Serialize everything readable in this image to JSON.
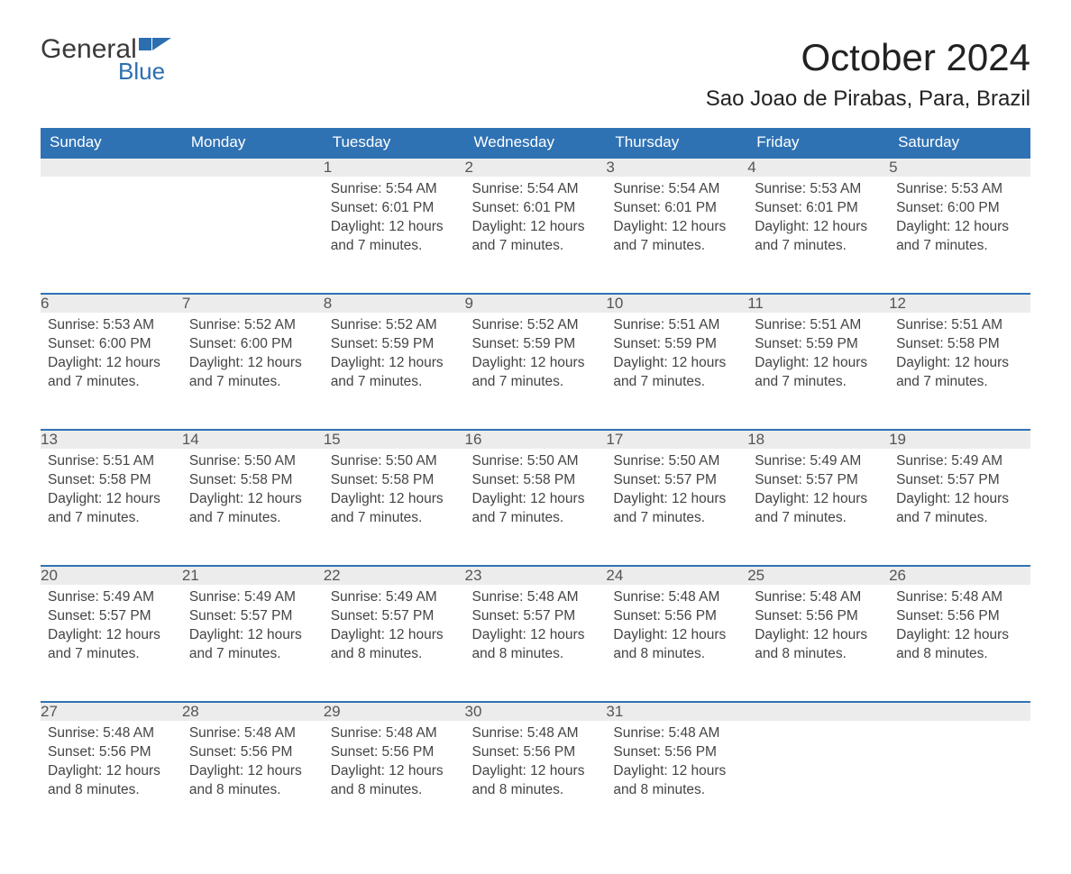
{
  "logo": {
    "text_general": "General",
    "text_blue": "Blue"
  },
  "title": "October 2024",
  "location": "Sao Joao de Pirabas, Para, Brazil",
  "colors": {
    "header_bg": "#2f72b4",
    "header_text": "#ffffff",
    "daynum_bg": "#ececec",
    "daynum_border": "#2f72b4",
    "body_text": "#444444",
    "logo_blue": "#2b6fb0"
  },
  "weekdays": [
    "Sunday",
    "Monday",
    "Tuesday",
    "Wednesday",
    "Thursday",
    "Friday",
    "Saturday"
  ],
  "weeks": [
    [
      null,
      null,
      {
        "n": "1",
        "sunrise": "5:54 AM",
        "sunset": "6:01 PM",
        "daylight": "12 hours and 7 minutes."
      },
      {
        "n": "2",
        "sunrise": "5:54 AM",
        "sunset": "6:01 PM",
        "daylight": "12 hours and 7 minutes."
      },
      {
        "n": "3",
        "sunrise": "5:54 AM",
        "sunset": "6:01 PM",
        "daylight": "12 hours and 7 minutes."
      },
      {
        "n": "4",
        "sunrise": "5:53 AM",
        "sunset": "6:01 PM",
        "daylight": "12 hours and 7 minutes."
      },
      {
        "n": "5",
        "sunrise": "5:53 AM",
        "sunset": "6:00 PM",
        "daylight": "12 hours and 7 minutes."
      }
    ],
    [
      {
        "n": "6",
        "sunrise": "5:53 AM",
        "sunset": "6:00 PM",
        "daylight": "12 hours and 7 minutes."
      },
      {
        "n": "7",
        "sunrise": "5:52 AM",
        "sunset": "6:00 PM",
        "daylight": "12 hours and 7 minutes."
      },
      {
        "n": "8",
        "sunrise": "5:52 AM",
        "sunset": "5:59 PM",
        "daylight": "12 hours and 7 minutes."
      },
      {
        "n": "9",
        "sunrise": "5:52 AM",
        "sunset": "5:59 PM",
        "daylight": "12 hours and 7 minutes."
      },
      {
        "n": "10",
        "sunrise": "5:51 AM",
        "sunset": "5:59 PM",
        "daylight": "12 hours and 7 minutes."
      },
      {
        "n": "11",
        "sunrise": "5:51 AM",
        "sunset": "5:59 PM",
        "daylight": "12 hours and 7 minutes."
      },
      {
        "n": "12",
        "sunrise": "5:51 AM",
        "sunset": "5:58 PM",
        "daylight": "12 hours and 7 minutes."
      }
    ],
    [
      {
        "n": "13",
        "sunrise": "5:51 AM",
        "sunset": "5:58 PM",
        "daylight": "12 hours and 7 minutes."
      },
      {
        "n": "14",
        "sunrise": "5:50 AM",
        "sunset": "5:58 PM",
        "daylight": "12 hours and 7 minutes."
      },
      {
        "n": "15",
        "sunrise": "5:50 AM",
        "sunset": "5:58 PM",
        "daylight": "12 hours and 7 minutes."
      },
      {
        "n": "16",
        "sunrise": "5:50 AM",
        "sunset": "5:58 PM",
        "daylight": "12 hours and 7 minutes."
      },
      {
        "n": "17",
        "sunrise": "5:50 AM",
        "sunset": "5:57 PM",
        "daylight": "12 hours and 7 minutes."
      },
      {
        "n": "18",
        "sunrise": "5:49 AM",
        "sunset": "5:57 PM",
        "daylight": "12 hours and 7 minutes."
      },
      {
        "n": "19",
        "sunrise": "5:49 AM",
        "sunset": "5:57 PM",
        "daylight": "12 hours and 7 minutes."
      }
    ],
    [
      {
        "n": "20",
        "sunrise": "5:49 AM",
        "sunset": "5:57 PM",
        "daylight": "12 hours and 7 minutes."
      },
      {
        "n": "21",
        "sunrise": "5:49 AM",
        "sunset": "5:57 PM",
        "daylight": "12 hours and 7 minutes."
      },
      {
        "n": "22",
        "sunrise": "5:49 AM",
        "sunset": "5:57 PM",
        "daylight": "12 hours and 8 minutes."
      },
      {
        "n": "23",
        "sunrise": "5:48 AM",
        "sunset": "5:57 PM",
        "daylight": "12 hours and 8 minutes."
      },
      {
        "n": "24",
        "sunrise": "5:48 AM",
        "sunset": "5:56 PM",
        "daylight": "12 hours and 8 minutes."
      },
      {
        "n": "25",
        "sunrise": "5:48 AM",
        "sunset": "5:56 PM",
        "daylight": "12 hours and 8 minutes."
      },
      {
        "n": "26",
        "sunrise": "5:48 AM",
        "sunset": "5:56 PM",
        "daylight": "12 hours and 8 minutes."
      }
    ],
    [
      {
        "n": "27",
        "sunrise": "5:48 AM",
        "sunset": "5:56 PM",
        "daylight": "12 hours and 8 minutes."
      },
      {
        "n": "28",
        "sunrise": "5:48 AM",
        "sunset": "5:56 PM",
        "daylight": "12 hours and 8 minutes."
      },
      {
        "n": "29",
        "sunrise": "5:48 AM",
        "sunset": "5:56 PM",
        "daylight": "12 hours and 8 minutes."
      },
      {
        "n": "30",
        "sunrise": "5:48 AM",
        "sunset": "5:56 PM",
        "daylight": "12 hours and 8 minutes."
      },
      {
        "n": "31",
        "sunrise": "5:48 AM",
        "sunset": "5:56 PM",
        "daylight": "12 hours and 8 minutes."
      },
      null,
      null
    ]
  ],
  "labels": {
    "sunrise": "Sunrise: ",
    "sunset": "Sunset: ",
    "daylight": "Daylight: "
  }
}
